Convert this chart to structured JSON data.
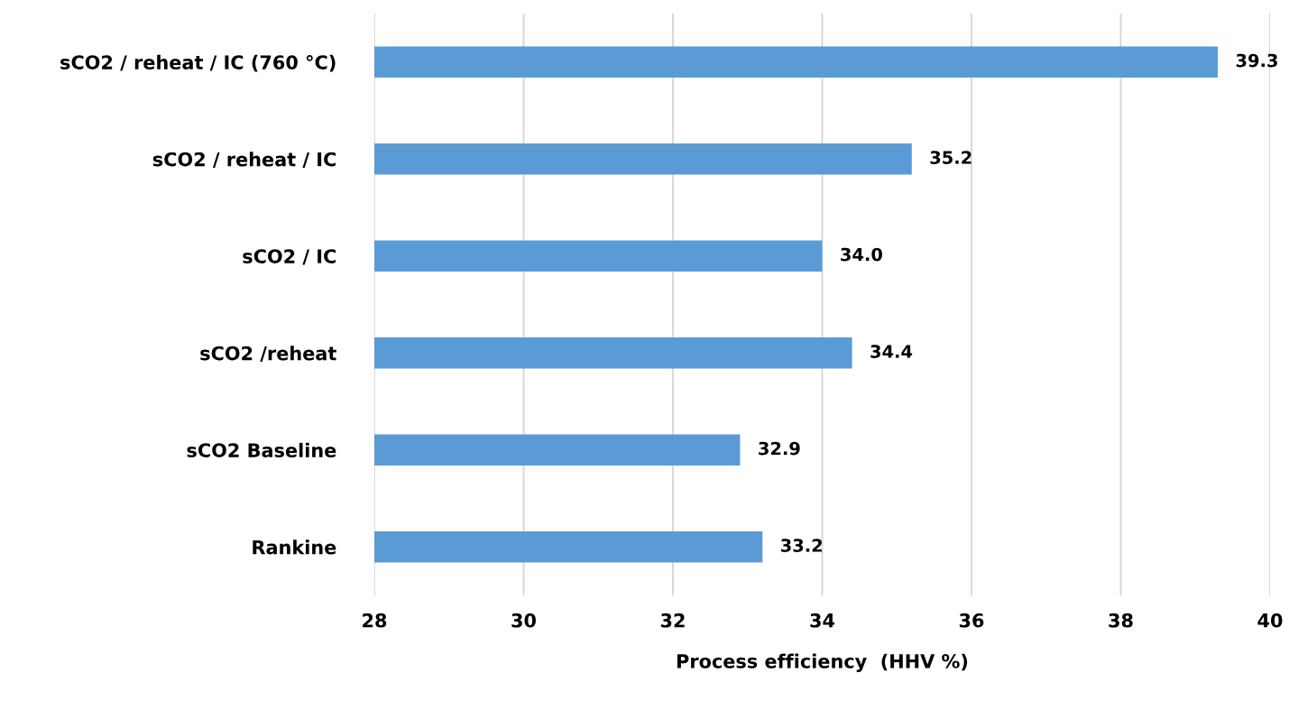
{
  "chart_data": {
    "type": "bar",
    "orientation": "horizontal",
    "categories": [
      "sCO2 / reheat / IC (760 °C)",
      "sCO2 / reheat / IC",
      "sCO2 / IC",
      "sCO2 /reheat",
      "sCO2 Baseline",
      "Rankine"
    ],
    "values": [
      39.3,
      35.2,
      34.0,
      34.4,
      32.9,
      33.2
    ],
    "value_labels": [
      "39.3",
      "35.2",
      "34.0",
      "34.4",
      "32.9",
      "33.2"
    ],
    "color": "#5b9bd5",
    "xlabel": "Process efficiency  (HHV %)",
    "xlim": [
      28,
      40
    ],
    "xticks": [
      28,
      30,
      32,
      34,
      36,
      38,
      40
    ],
    "grid": "x",
    "legend": false
  }
}
